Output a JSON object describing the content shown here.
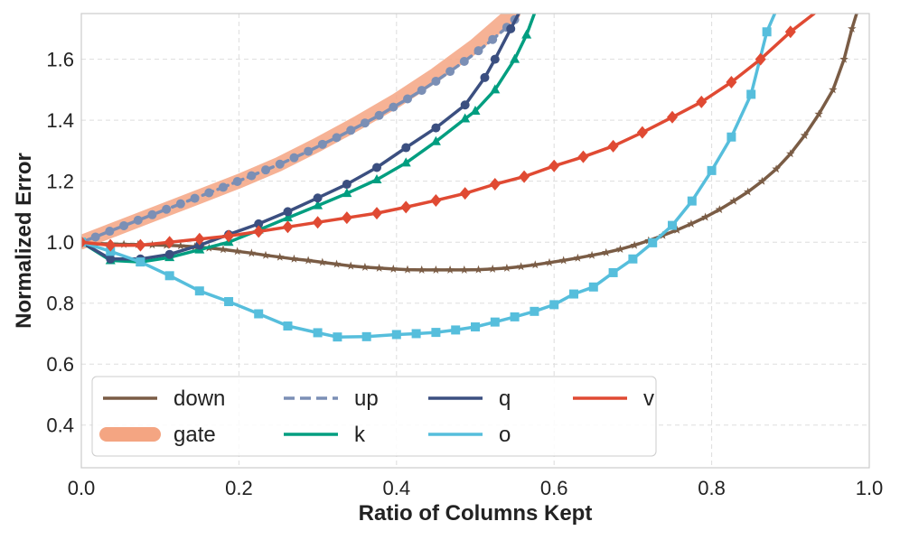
{
  "chart_data": {
    "type": "line",
    "title": "",
    "xlabel": "Ratio of Columns Kept",
    "ylabel": "Normalized Error",
    "xlim": [
      0.0,
      1.0
    ],
    "ylim": [
      0.26,
      1.75
    ],
    "xticks": [
      0.0,
      0.2,
      0.4,
      0.6,
      0.8,
      1.0
    ],
    "xtick_labels": [
      "0.0",
      "0.2",
      "0.4",
      "0.6",
      "0.8",
      "1.0"
    ],
    "yticks": [
      0.4,
      0.6,
      0.8,
      1.0,
      1.2,
      1.4,
      1.6
    ],
    "ytick_labels": [
      "0.4",
      "0.6",
      "0.8",
      "1.0",
      "1.2",
      "1.4",
      "1.6"
    ],
    "grid": true,
    "legend_position": "bottom-left",
    "series": [
      {
        "name": "down",
        "color": "#7a5c45",
        "marker": "star",
        "style": "solid",
        "points": [
          [
            0.0,
            1.0
          ],
          [
            0.018,
            0.996
          ],
          [
            0.036,
            0.994
          ],
          [
            0.054,
            0.993
          ],
          [
            0.072,
            0.992
          ],
          [
            0.09,
            0.991
          ],
          [
            0.108,
            0.99
          ],
          [
            0.126,
            0.988
          ],
          [
            0.144,
            0.985
          ],
          [
            0.162,
            0.981
          ],
          [
            0.18,
            0.976
          ],
          [
            0.198,
            0.97
          ],
          [
            0.216,
            0.964
          ],
          [
            0.234,
            0.957
          ],
          [
            0.252,
            0.951
          ],
          [
            0.27,
            0.945
          ],
          [
            0.288,
            0.94
          ],
          [
            0.306,
            0.934
          ],
          [
            0.324,
            0.928
          ],
          [
            0.342,
            0.922
          ],
          [
            0.36,
            0.918
          ],
          [
            0.378,
            0.915
          ],
          [
            0.396,
            0.912
          ],
          [
            0.414,
            0.91
          ],
          [
            0.432,
            0.909
          ],
          [
            0.45,
            0.909
          ],
          [
            0.468,
            0.909
          ],
          [
            0.486,
            0.909
          ],
          [
            0.504,
            0.91
          ],
          [
            0.522,
            0.912
          ],
          [
            0.54,
            0.915
          ],
          [
            0.558,
            0.92
          ],
          [
            0.576,
            0.926
          ],
          [
            0.594,
            0.933
          ],
          [
            0.612,
            0.94
          ],
          [
            0.63,
            0.948
          ],
          [
            0.648,
            0.957
          ],
          [
            0.666,
            0.966
          ],
          [
            0.684,
            0.977
          ],
          [
            0.702,
            0.99
          ],
          [
            0.72,
            1.005
          ],
          [
            0.738,
            1.022
          ],
          [
            0.756,
            1.04
          ],
          [
            0.774,
            1.06
          ],
          [
            0.792,
            1.082
          ],
          [
            0.81,
            1.107
          ],
          [
            0.828,
            1.135
          ],
          [
            0.846,
            1.165
          ],
          [
            0.864,
            1.2
          ],
          [
            0.882,
            1.24
          ],
          [
            0.9,
            1.29
          ],
          [
            0.918,
            1.35
          ],
          [
            0.936,
            1.42
          ],
          [
            0.954,
            1.5
          ],
          [
            0.968,
            1.6
          ],
          [
            0.978,
            1.7
          ],
          [
            0.984,
            1.75
          ]
        ]
      },
      {
        "name": "gate",
        "color": "#f4a582",
        "marker": "none",
        "style": "thick",
        "points": [
          [
            0.0,
            1.0
          ],
          [
            0.05,
            1.05
          ],
          [
            0.1,
            1.1
          ],
          [
            0.15,
            1.15
          ],
          [
            0.2,
            1.2
          ],
          [
            0.25,
            1.255
          ],
          [
            0.3,
            1.32
          ],
          [
            0.35,
            1.39
          ],
          [
            0.4,
            1.465
          ],
          [
            0.45,
            1.55
          ],
          [
            0.5,
            1.645
          ],
          [
            0.54,
            1.735
          ],
          [
            0.548,
            1.75
          ]
        ]
      },
      {
        "name": "up",
        "color": "#7b8fb5",
        "marker": "circle",
        "style": "dashed",
        "points": [
          [
            0.0,
            1.0
          ],
          [
            0.018,
            1.017
          ],
          [
            0.036,
            1.036
          ],
          [
            0.054,
            1.054
          ],
          [
            0.072,
            1.072
          ],
          [
            0.09,
            1.09
          ],
          [
            0.108,
            1.108
          ],
          [
            0.126,
            1.126
          ],
          [
            0.144,
            1.144
          ],
          [
            0.162,
            1.162
          ],
          [
            0.18,
            1.18
          ],
          [
            0.198,
            1.199
          ],
          [
            0.216,
            1.218
          ],
          [
            0.234,
            1.237
          ],
          [
            0.252,
            1.256
          ],
          [
            0.27,
            1.277
          ],
          [
            0.288,
            1.298
          ],
          [
            0.306,
            1.321
          ],
          [
            0.324,
            1.343
          ],
          [
            0.342,
            1.367
          ],
          [
            0.36,
            1.391
          ],
          [
            0.378,
            1.416
          ],
          [
            0.396,
            1.443
          ],
          [
            0.414,
            1.47
          ],
          [
            0.432,
            1.498
          ],
          [
            0.45,
            1.528
          ],
          [
            0.468,
            1.56
          ],
          [
            0.486,
            1.593
          ],
          [
            0.504,
            1.628
          ],
          [
            0.522,
            1.665
          ],
          [
            0.54,
            1.705
          ],
          [
            0.55,
            1.73
          ]
        ]
      },
      {
        "name": "k",
        "color": "#009e80",
        "marker": "triangle",
        "style": "solid",
        "points": [
          [
            0.0,
            1.0
          ],
          [
            0.037,
            0.94
          ],
          [
            0.075,
            0.935
          ],
          [
            0.112,
            0.95
          ],
          [
            0.15,
            0.975
          ],
          [
            0.187,
            1.0
          ],
          [
            0.225,
            1.04
          ],
          [
            0.262,
            1.08
          ],
          [
            0.3,
            1.12
          ],
          [
            0.337,
            1.16
          ],
          [
            0.375,
            1.205
          ],
          [
            0.412,
            1.26
          ],
          [
            0.45,
            1.33
          ],
          [
            0.487,
            1.405
          ],
          [
            0.5,
            1.43
          ],
          [
            0.525,
            1.5
          ],
          [
            0.55,
            1.6
          ],
          [
            0.565,
            1.68
          ],
          [
            0.575,
            1.75
          ]
        ]
      },
      {
        "name": "q",
        "color": "#3b4f80",
        "marker": "circle",
        "style": "solid",
        "points": [
          [
            0.0,
            1.0
          ],
          [
            0.037,
            0.945
          ],
          [
            0.075,
            0.945
          ],
          [
            0.112,
            0.96
          ],
          [
            0.15,
            0.99
          ],
          [
            0.187,
            1.025
          ],
          [
            0.225,
            1.06
          ],
          [
            0.262,
            1.1
          ],
          [
            0.3,
            1.145
          ],
          [
            0.337,
            1.19
          ],
          [
            0.375,
            1.245
          ],
          [
            0.412,
            1.31
          ],
          [
            0.45,
            1.375
          ],
          [
            0.487,
            1.45
          ],
          [
            0.512,
            1.54
          ],
          [
            0.525,
            1.6
          ],
          [
            0.545,
            1.7
          ],
          [
            0.555,
            1.75
          ]
        ]
      },
      {
        "name": "o",
        "color": "#56bedc",
        "marker": "square",
        "style": "solid",
        "points": [
          [
            0.0,
            1.0
          ],
          [
            0.037,
            0.97
          ],
          [
            0.075,
            0.935
          ],
          [
            0.112,
            0.89
          ],
          [
            0.15,
            0.84
          ],
          [
            0.187,
            0.805
          ],
          [
            0.225,
            0.765
          ],
          [
            0.262,
            0.725
          ],
          [
            0.3,
            0.703
          ],
          [
            0.325,
            0.689
          ],
          [
            0.362,
            0.69
          ],
          [
            0.4,
            0.697
          ],
          [
            0.425,
            0.7
          ],
          [
            0.45,
            0.704
          ],
          [
            0.475,
            0.712
          ],
          [
            0.5,
            0.722
          ],
          [
            0.525,
            0.738
          ],
          [
            0.55,
            0.755
          ],
          [
            0.575,
            0.773
          ],
          [
            0.6,
            0.795
          ],
          [
            0.625,
            0.83
          ],
          [
            0.65,
            0.853
          ],
          [
            0.675,
            0.9
          ],
          [
            0.7,
            0.945
          ],
          [
            0.725,
            0.998
          ],
          [
            0.75,
            1.055
          ],
          [
            0.775,
            1.135
          ],
          [
            0.8,
            1.235
          ],
          [
            0.825,
            1.345
          ],
          [
            0.85,
            1.485
          ],
          [
            0.87,
            1.69
          ],
          [
            0.88,
            1.75
          ]
        ]
      },
      {
        "name": "v",
        "color": "#e04a33",
        "marker": "diamond",
        "style": "solid",
        "points": [
          [
            0.0,
            1.0
          ],
          [
            0.037,
            0.99
          ],
          [
            0.075,
            0.99
          ],
          [
            0.112,
            1.0
          ],
          [
            0.15,
            1.01
          ],
          [
            0.187,
            1.02
          ],
          [
            0.225,
            1.035
          ],
          [
            0.262,
            1.05
          ],
          [
            0.3,
            1.065
          ],
          [
            0.337,
            1.08
          ],
          [
            0.375,
            1.095
          ],
          [
            0.412,
            1.115
          ],
          [
            0.45,
            1.137
          ],
          [
            0.487,
            1.16
          ],
          [
            0.525,
            1.19
          ],
          [
            0.562,
            1.215
          ],
          [
            0.6,
            1.25
          ],
          [
            0.637,
            1.28
          ],
          [
            0.675,
            1.315
          ],
          [
            0.712,
            1.36
          ],
          [
            0.75,
            1.41
          ],
          [
            0.787,
            1.46
          ],
          [
            0.825,
            1.525
          ],
          [
            0.862,
            1.6
          ],
          [
            0.9,
            1.69
          ],
          [
            0.93,
            1.75
          ]
        ]
      }
    ]
  }
}
